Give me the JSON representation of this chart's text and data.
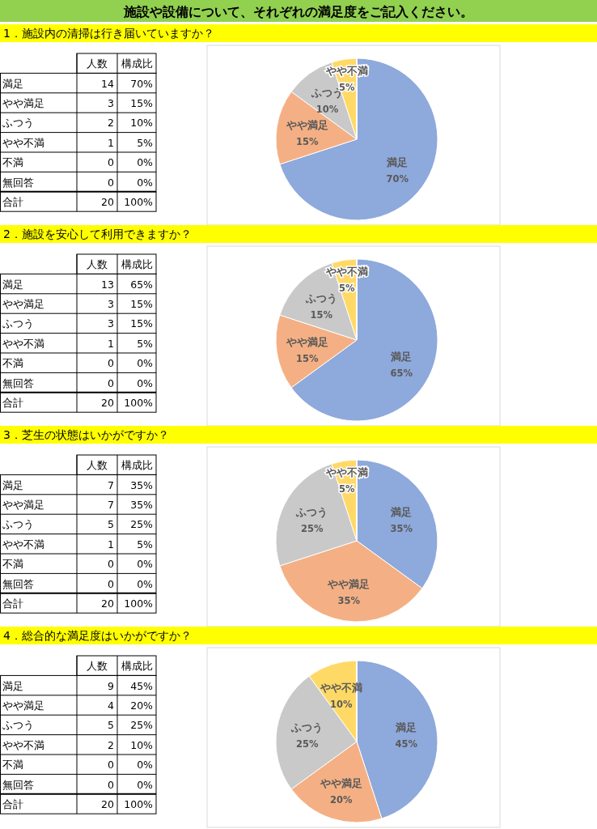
{
  "chart_data": [
    {
      "type": "pie",
      "subtitle": "施設や設備について、それぞれの満足度をご記入ください。",
      "title": "1．施設内の清掃は行き届いていますか？",
      "categories": [
        "満足",
        "やや満足",
        "ふつう",
        "やや不満",
        "不満",
        "無回答"
      ],
      "values": [
        70,
        15,
        10,
        5,
        0,
        0
      ],
      "value_labels": [
        "70%",
        "15%",
        "10%",
        "5%",
        "0%",
        "0%"
      ],
      "colors": [
        "#8ea9db",
        "#f4b084",
        "#c9c9c9",
        "#ffd966",
        "#9dc3e6",
        "#a9d08e"
      ],
      "annotations": [
        "人数",
        "構成比",
        "14",
        "3",
        "2",
        "1",
        "0",
        "0",
        "合計",
        "20",
        "100%"
      ]
    },
    {
      "type": "pie",
      "title": "2．施設を安心して利用できますか？",
      "categories": [
        "満足",
        "やや満足",
        "ふつう",
        "やや不満",
        "不満",
        "無回答"
      ],
      "values": [
        65,
        15,
        15,
        5,
        0,
        0
      ],
      "value_labels": [
        "65%",
        "15%",
        "15%",
        "5%",
        "0%",
        "0%"
      ],
      "colors": [
        "#8ea9db",
        "#f4b084",
        "#c9c9c9",
        "#ffd966",
        "#9dc3e6",
        "#a9d08e"
      ],
      "annotations": [
        "人数",
        "構成比",
        "13",
        "3",
        "3",
        "1",
        "0",
        "0",
        "合計",
        "20",
        "100%"
      ]
    },
    {
      "type": "pie",
      "title": "3．芝生の状態はいかがですか？",
      "categories": [
        "満足",
        "やや満足",
        "ふつう",
        "やや不満",
        "不満",
        "無回答"
      ],
      "values": [
        35,
        35,
        25,
        5,
        0,
        0
      ],
      "value_labels": [
        "35%",
        "35%",
        "25%",
        "5%",
        "0%",
        "0%"
      ],
      "colors": [
        "#8ea9db",
        "#f4b084",
        "#c9c9c9",
        "#ffd966",
        "#9dc3e6",
        "#a9d08e"
      ],
      "annotations": [
        "人数",
        "構成比",
        "7",
        "7",
        "5",
        "1",
        "0",
        "0",
        "合計",
        "20",
        "100%"
      ]
    },
    {
      "type": "pie",
      "title": "4．総合的な満足度はいかがですか？",
      "categories": [
        "満足",
        "やや満足",
        "ふつう",
        "やや不満",
        "不満",
        "無回答"
      ],
      "values": [
        45,
        20,
        25,
        10,
        0,
        0
      ],
      "value_labels": [
        "45%",
        "20%",
        "25%",
        "10%",
        "0%",
        "0%"
      ],
      "colors": [
        "#8ea9db",
        "#f4b084",
        "#c9c9c9",
        "#ffd966",
        "#9dc3e6",
        "#a9d08e"
      ],
      "annotations": [
        "人数",
        "構成比",
        "9",
        "4",
        "5",
        "2",
        "0",
        "0",
        "合計",
        "20",
        "100%"
      ]
    }
  ]
}
